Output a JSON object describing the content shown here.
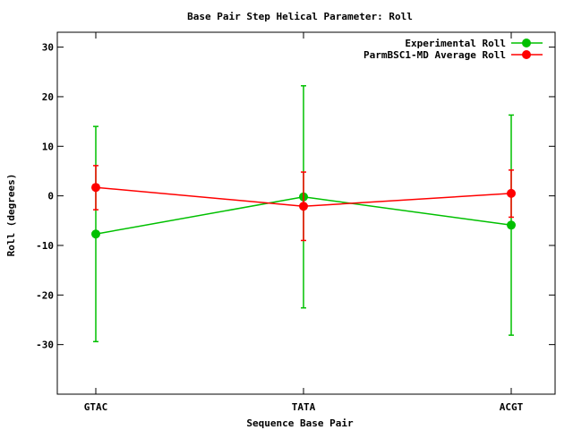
{
  "chart_data": {
    "type": "line",
    "title": "Base Pair Step Helical Parameter: Roll",
    "xlabel": "Sequence Base Pair",
    "ylabel": "Roll (degrees)",
    "categories": [
      "GTAC",
      "TATA",
      "ACGT"
    ],
    "ylim": [
      -40,
      33
    ],
    "yticks": [
      -30,
      -20,
      -10,
      0,
      10,
      20,
      30
    ],
    "grid": false,
    "legend_position": "top-right",
    "series": [
      {
        "name": "Experimental Roll",
        "color": "#00c000",
        "values": [
          -7.7,
          -0.2,
          -5.9
        ],
        "error_low": [
          -29.4,
          -22.6,
          -28.1
        ],
        "error_high": [
          14.0,
          22.2,
          16.3
        ]
      },
      {
        "name": "ParmBSC1-MD Average Roll",
        "color": "#ff0000",
        "values": [
          1.7,
          -2.1,
          0.5
        ],
        "error_low": [
          -2.8,
          -9.0,
          -4.3
        ],
        "error_high": [
          6.1,
          4.8,
          5.2
        ]
      }
    ]
  }
}
